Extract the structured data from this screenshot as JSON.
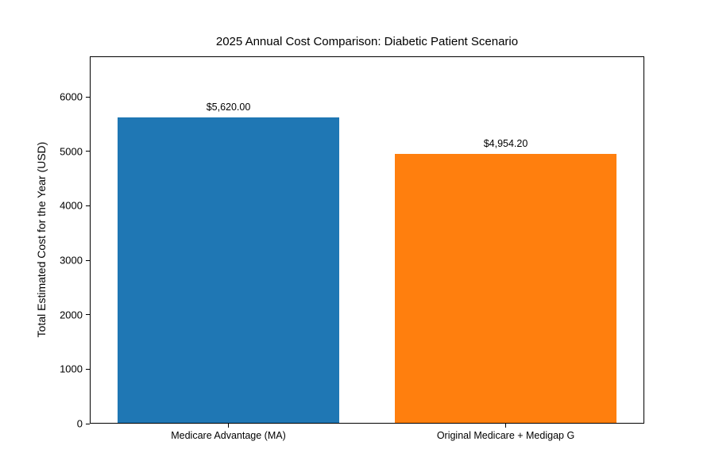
{
  "chart_data": {
    "type": "bar",
    "title": "2025 Annual Cost Comparison: Diabetic Patient Scenario",
    "ylabel": "Total Estimated Cost for the Year (USD)",
    "xlabel": "",
    "categories": [
      "Medicare Advantage (MA)",
      "Original Medicare + Medigap G"
    ],
    "values": [
      5620.0,
      4954.2
    ],
    "value_labels": [
      "$5,620.00",
      "$4,954.20"
    ],
    "bar_colors": [
      "#1f77b4",
      "#ff7f0e"
    ],
    "yticks": [
      0,
      1000,
      2000,
      3000,
      4000,
      5000,
      6000
    ],
    "ylim": [
      0,
      6743
    ],
    "bar_width_fraction": 0.8,
    "grid": false,
    "legend_position": "none",
    "frame_color": "#000000",
    "background_color": "#ffffff"
  }
}
